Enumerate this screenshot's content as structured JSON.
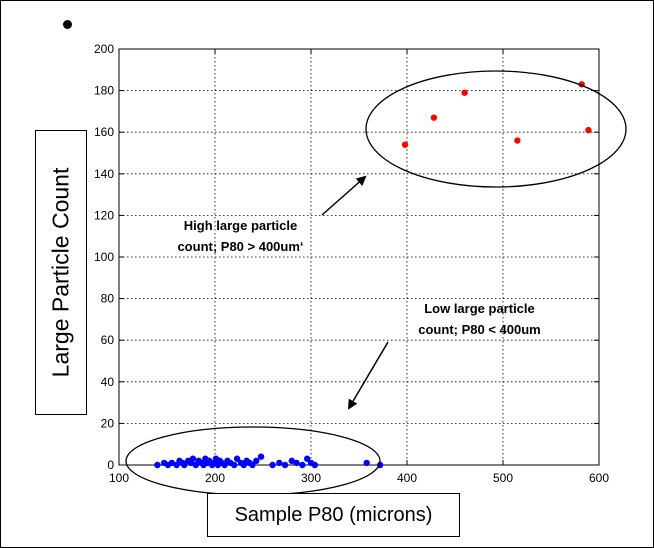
{
  "chart_data": {
    "type": "scatter",
    "title": "",
    "xlabel": "Sample P80 (microns)",
    "ylabel": "Large Particle Count",
    "xlim": [
      100,
      600
    ],
    "ylim": [
      0,
      200
    ],
    "xticks": [
      100,
      200,
      300,
      400,
      500,
      600
    ],
    "yticks": [
      0,
      20,
      40,
      60,
      80,
      100,
      120,
      140,
      160,
      180,
      200
    ],
    "grid": true,
    "series": [
      {
        "color": "#ff0000",
        "x": [
          398,
          428,
          460,
          515,
          582,
          589
        ],
        "y": [
          154,
          167,
          179,
          156,
          183,
          161
        ]
      },
      {
        "color": "#0000ff",
        "x": [
          140,
          147,
          151,
          155,
          160,
          163,
          166,
          168,
          172,
          175,
          177,
          180,
          183,
          186,
          188,
          190,
          192,
          194,
          197,
          199,
          201,
          203,
          205,
          207,
          210,
          213,
          216,
          220,
          223,
          227,
          230,
          233,
          236,
          239,
          243,
          248,
          260,
          267,
          273,
          280,
          285,
          291,
          296,
          300,
          304,
          358,
          372
        ],
        "y": [
          0,
          1,
          0,
          1,
          0,
          2,
          1,
          0,
          2,
          1,
          3,
          0,
          2,
          1,
          0,
          3,
          1,
          2,
          0,
          1,
          3,
          0,
          2,
          1,
          0,
          2,
          1,
          0,
          3,
          1,
          0,
          2,
          1,
          0,
          2,
          4,
          0,
          1,
          0,
          2,
          1,
          0,
          3,
          1,
          0,
          1,
          0
        ]
      }
    ],
    "annotations": [
      {
        "id": "high",
        "lines": [
          "High large particle",
          "count; P80 > 400um‘"
        ]
      },
      {
        "id": "low",
        "lines": [
          "Low large particle",
          "count; P80 < 400um"
        ]
      }
    ]
  }
}
